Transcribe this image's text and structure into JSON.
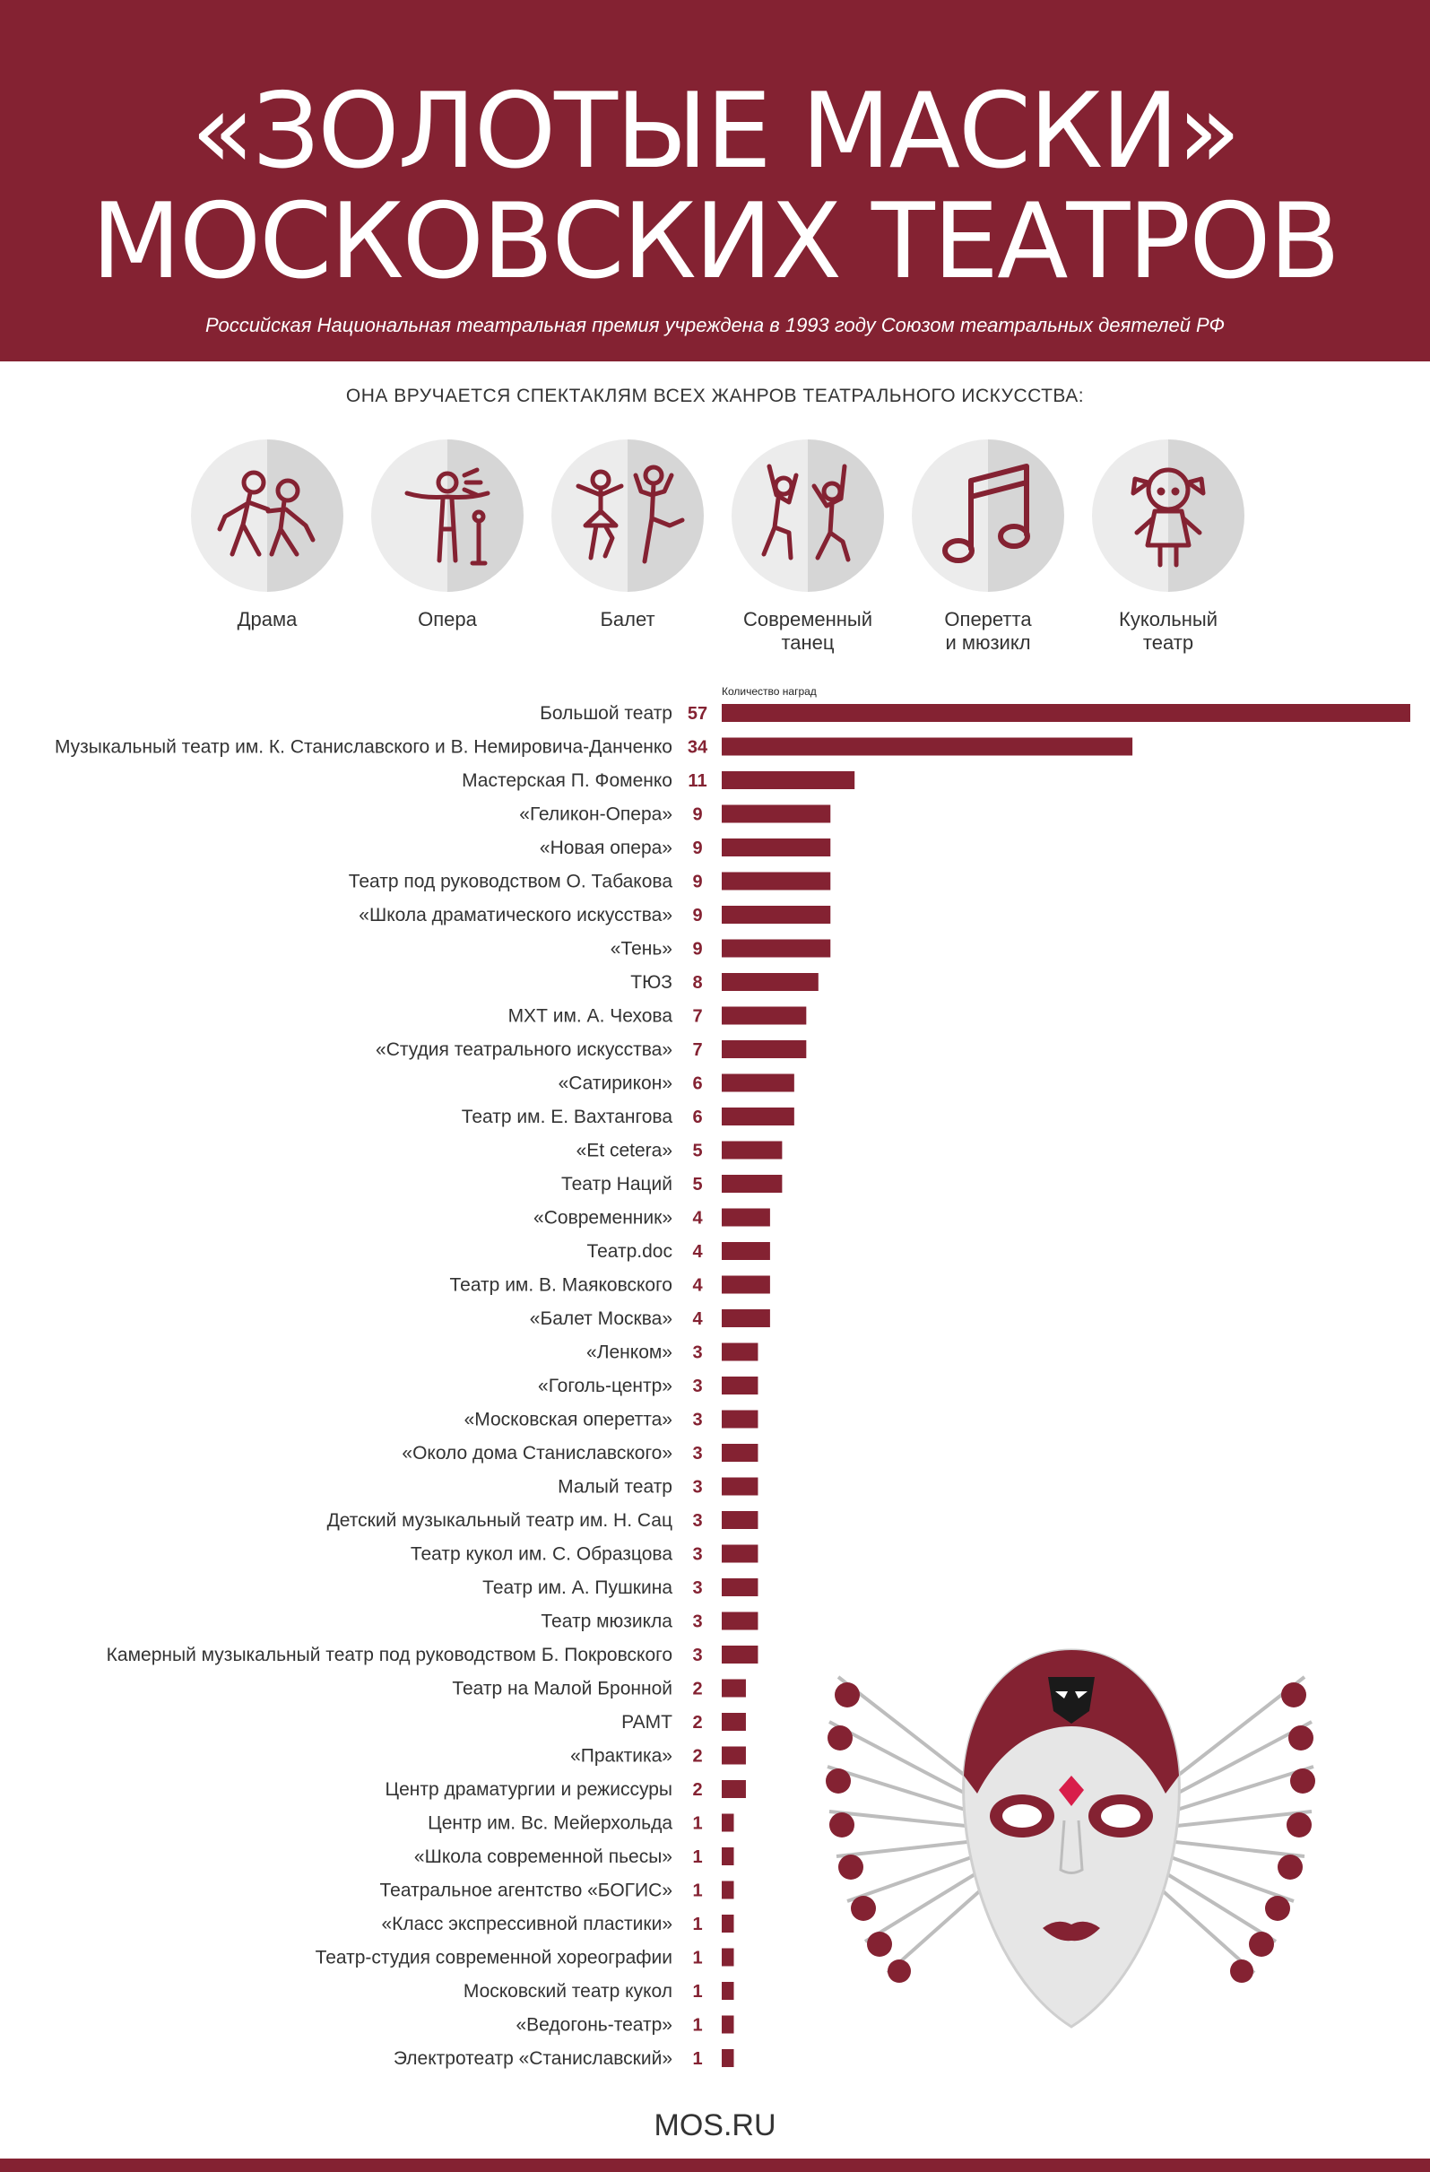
{
  "header": {
    "title_line1": "«ЗОЛОТЫЕ МАСКИ»",
    "title_line2": "МОСКОВСКИХ ТЕАТРОВ",
    "subtitle": "Российская Национальная театральная премия учреждена в 1993 году Союзом театральных деятелей РФ"
  },
  "genres": {
    "intro": "ОНА ВРУЧАЕТСЯ СПЕКТАКЛЯМ ВСЕХ ЖАНРОВ ТЕАТРАЛЬНОГО ИСКУССТВА:",
    "items": [
      {
        "label": "Драма",
        "icon": "drama-icon"
      },
      {
        "label": "Опера",
        "icon": "opera-icon"
      },
      {
        "label": "Балет",
        "icon": "ballet-icon"
      },
      {
        "label": "Современный\nтанец",
        "icon": "modern-dance-icon"
      },
      {
        "label": "Оперетта\nи мюзикл",
        "icon": "music-note-icon"
      },
      {
        "label": "Кукольный\nтеатр",
        "icon": "puppet-icon"
      }
    ]
  },
  "colors": {
    "accent": "#842232",
    "circle_light": "#ececec",
    "circle_dark": "#d6d6d6"
  },
  "chart_data": {
    "type": "bar",
    "orientation": "horizontal",
    "caption": "Количество наград",
    "categories": [
      "Большой театр",
      "Музыкальный театр им. К. Станиславского и В. Немировича-Данченко",
      "Мастерская П. Фоменко",
      "«Геликон-Опера»",
      "«Новая опера»",
      "Театр под руководством О. Табакова",
      "«Школа драматического искусства»",
      "«Тень»",
      "ТЮЗ",
      "МХТ им. А. Чехова",
      "«Студия театрального искусства»",
      "«Сатирикон»",
      "Театр им. Е. Вахтангова",
      "«Et cetera»",
      "Театр Наций",
      "«Современник»",
      "Театр.doc",
      "Театр им. В. Маяковского",
      "«Балет Москва»",
      "«Ленком»",
      "«Гоголь-центр»",
      "«Московская оперетта»",
      "«Около дома Станиславского»",
      "Малый театр",
      "Детский музыкальный театр им. Н. Сац",
      "Театр кукол им. С. Образцова",
      "Театр им. А. Пушкина",
      "Театр мюзикла",
      "Камерный музыкальный театр под руководством Б. Покровского",
      "Театр на Малой Бронной",
      "РАМТ",
      "«Практика»",
      "Центр драматургии и режиссуры",
      "Центр им. Вс. Мейерхольда",
      "«Школа современной пьесы»",
      "Театральное агентство «БОГИС»",
      "«Класс экспрессивной пластики»",
      "Театр-студия современной хореографии",
      "Московский театр кукол",
      "«Ведогонь-театр»",
      "Электротеатр «Станиславский»"
    ],
    "values": [
      57,
      34,
      11,
      9,
      9,
      9,
      9,
      9,
      8,
      7,
      7,
      6,
      6,
      5,
      5,
      4,
      4,
      4,
      4,
      3,
      3,
      3,
      3,
      3,
      3,
      3,
      3,
      3,
      3,
      2,
      2,
      2,
      2,
      1,
      1,
      1,
      1,
      1,
      1,
      1,
      1
    ],
    "xlim": [
      0,
      57
    ],
    "grid": false,
    "bar_color": "#842232"
  },
  "footer": {
    "brand": "MOS.RU"
  }
}
